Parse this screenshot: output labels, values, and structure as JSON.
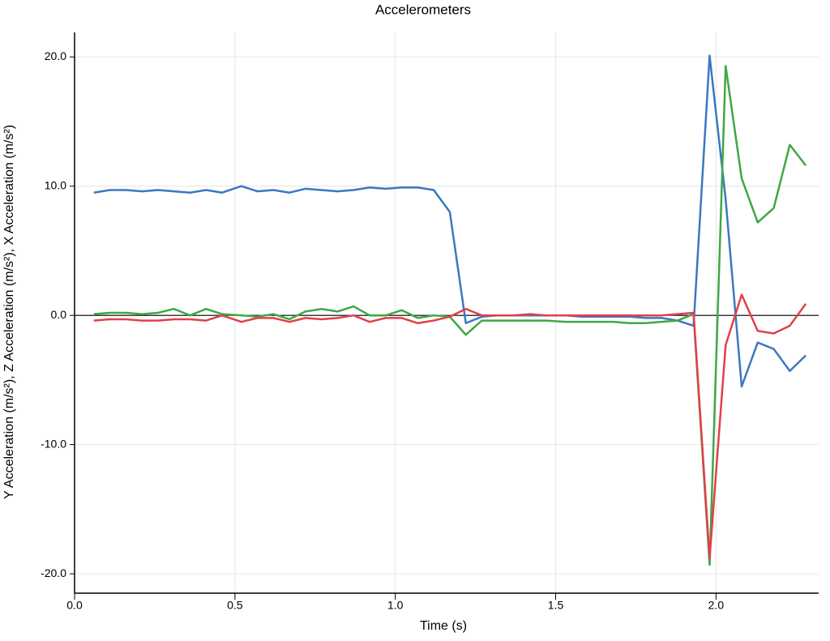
{
  "chart_data": {
    "type": "line",
    "title": "Accelerometers",
    "x_label": "Time (s)",
    "y_label": "Y Acceleration (m/s²), Z Acceleration (m/s²), X Acceleration (m/s²)",
    "x": [
      0.06,
      0.11,
      0.16,
      0.21,
      0.26,
      0.31,
      0.36,
      0.41,
      0.46,
      0.52,
      0.57,
      0.62,
      0.67,
      0.72,
      0.77,
      0.82,
      0.87,
      0.92,
      0.97,
      1.02,
      1.07,
      1.12,
      1.17,
      1.22,
      1.27,
      1.32,
      1.37,
      1.42,
      1.47,
      1.53,
      1.58,
      1.63,
      1.68,
      1.73,
      1.78,
      1.83,
      1.88,
      1.93,
      1.98,
      2.03,
      2.08,
      2.13,
      2.18,
      2.23,
      2.28
    ],
    "series": [
      {
        "color": "#3a78c0",
        "values": [
          9.5,
          9.7,
          9.7,
          9.6,
          9.7,
          9.6,
          9.5,
          9.7,
          9.5,
          10.0,
          9.6,
          9.7,
          9.5,
          9.8,
          9.7,
          9.6,
          9.7,
          9.9,
          9.8,
          9.9,
          9.9,
          9.7,
          8.0,
          -0.6,
          -0.1,
          0.0,
          0.0,
          0.0,
          0.0,
          0.0,
          -0.1,
          -0.1,
          -0.1,
          -0.1,
          -0.2,
          -0.2,
          -0.4,
          -0.8,
          20.1,
          9.0,
          -5.5,
          -2.1,
          -2.6,
          -4.3,
          -3.1
        ]
      },
      {
        "color": "#3ea844",
        "values": [
          0.1,
          0.2,
          0.2,
          0.1,
          0.2,
          0.5,
          0.0,
          0.5,
          0.1,
          0.0,
          -0.1,
          0.1,
          -0.3,
          0.3,
          0.5,
          0.3,
          0.7,
          0.0,
          0.0,
          0.4,
          -0.2,
          0.0,
          -0.1,
          -1.5,
          -0.4,
          -0.4,
          -0.4,
          -0.4,
          -0.4,
          -0.5,
          -0.5,
          -0.5,
          -0.5,
          -0.6,
          -0.6,
          -0.5,
          -0.4,
          0.1,
          -19.3,
          19.3,
          10.6,
          7.2,
          8.3,
          13.2,
          11.6
        ]
      },
      {
        "color": "#e0404a",
        "values": [
          -0.4,
          -0.3,
          -0.3,
          -0.4,
          -0.4,
          -0.3,
          -0.3,
          -0.4,
          0.0,
          -0.5,
          -0.2,
          -0.2,
          -0.5,
          -0.2,
          -0.3,
          -0.2,
          0.0,
          -0.5,
          -0.2,
          -0.2,
          -0.6,
          -0.4,
          -0.1,
          0.5,
          0.0,
          0.0,
          0.0,
          0.1,
          0.0,
          0.0,
          0.0,
          0.0,
          0.0,
          0.0,
          0.0,
          0.0,
          0.1,
          0.2,
          -18.8,
          -2.3,
          1.6,
          -1.2,
          -1.4,
          -0.8,
          0.9
        ]
      }
    ],
    "xlim": [
      0,
      2.32
    ],
    "ylim": [
      -21.5,
      21.9
    ],
    "xticks": [
      {
        "value": 0,
        "label": "0.0"
      },
      {
        "value": 0.5,
        "label": "0.5"
      },
      {
        "value": 1,
        "label": "1.0"
      },
      {
        "value": 1.5,
        "label": "1.5"
      },
      {
        "value": 2,
        "label": "2.0"
      }
    ],
    "yticks": [
      {
        "value": -20,
        "label": "-20.0"
      },
      {
        "value": -10,
        "label": "-10.0"
      },
      {
        "value": 0,
        "label": "0.0"
      },
      {
        "value": 10,
        "label": "10.0"
      },
      {
        "value": 20,
        "label": "20.0"
      }
    ],
    "grid": true,
    "zero_line": true
  }
}
